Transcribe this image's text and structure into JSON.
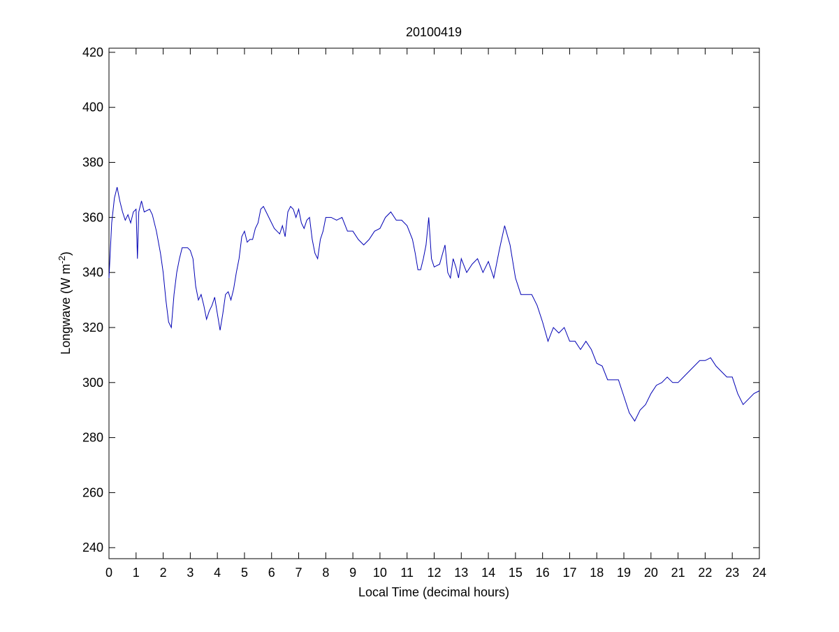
{
  "chart_data": {
    "type": "line",
    "title": "20100419",
    "xlabel": "Local Time (decimal hours)",
    "ylabel": [
      "Longwave (W m",
      "-2",
      ")"
    ],
    "xlim": [
      0,
      24
    ],
    "xticks": [
      0,
      1,
      2,
      3,
      4,
      5,
      6,
      7,
      8,
      9,
      10,
      11,
      12,
      13,
      14,
      15,
      16,
      17,
      18,
      19,
      20,
      21,
      22,
      23,
      24
    ],
    "ylim": [
      236,
      421.5
    ],
    "yticks": [
      240,
      260,
      280,
      300,
      320,
      340,
      360,
      380,
      400,
      420
    ],
    "series": [
      {
        "color": "#0000b4",
        "x": [
          0,
          0.1,
          0.2,
          0.3,
          0.4,
          0.5,
          0.6,
          0.7,
          0.8,
          0.9,
          1.0,
          1.05,
          1.1,
          1.2,
          1.3,
          1.5,
          1.6,
          1.75,
          1.9,
          2.0,
          2.1,
          2.2,
          2.3,
          2.4,
          2.5,
          2.6,
          2.7,
          2.8,
          2.9,
          3.0,
          3.1,
          3.2,
          3.3,
          3.4,
          3.5,
          3.6,
          3.7,
          3.8,
          3.9,
          4.0,
          4.1,
          4.2,
          4.3,
          4.4,
          4.5,
          4.6,
          4.7,
          4.8,
          4.9,
          5.0,
          5.1,
          5.2,
          5.3,
          5.4,
          5.5,
          5.6,
          5.7,
          5.8,
          5.9,
          6.0,
          6.1,
          6.2,
          6.3,
          6.4,
          6.5,
          6.6,
          6.7,
          6.8,
          6.9,
          7.0,
          7.1,
          7.2,
          7.3,
          7.4,
          7.5,
          7.6,
          7.7,
          7.8,
          7.9,
          8.0,
          8.2,
          8.4,
          8.6,
          8.8,
          9.0,
          9.2,
          9.4,
          9.6,
          9.8,
          10.0,
          10.2,
          10.4,
          10.6,
          10.8,
          11.0,
          11.2,
          11.3,
          11.4,
          11.5,
          11.6,
          11.7,
          11.8,
          11.9,
          12.0,
          12.2,
          12.4,
          12.5,
          12.6,
          12.7,
          12.8,
          12.9,
          13.0,
          13.2,
          13.4,
          13.6,
          13.8,
          14.0,
          14.2,
          14.4,
          14.6,
          14.8,
          15.0,
          15.2,
          15.4,
          15.6,
          15.8,
          16.0,
          16.2,
          16.4,
          16.6,
          16.8,
          17.0,
          17.2,
          17.4,
          17.6,
          17.8,
          18.0,
          18.2,
          18.4,
          18.6,
          18.8,
          19.0,
          19.2,
          19.4,
          19.6,
          19.8,
          20.0,
          20.2,
          20.4,
          20.6,
          20.8,
          21.0,
          21.2,
          21.4,
          21.6,
          21.8,
          22.0,
          22.2,
          22.4,
          22.6,
          22.8,
          23.0,
          23.2,
          23.4,
          23.6,
          23.8,
          24.0
        ],
        "values": [
          338,
          358,
          367,
          371,
          366,
          362,
          359,
          361,
          358,
          362,
          363,
          345,
          362,
          366,
          362,
          363,
          361,
          355,
          347,
          340,
          330,
          322,
          320,
          332,
          340,
          345,
          349,
          349,
          349,
          348,
          345,
          335,
          330,
          332,
          328,
          323,
          326,
          328,
          331,
          325,
          319,
          325,
          332,
          333,
          330,
          334,
          340,
          345,
          353,
          355,
          351,
          352,
          352,
          356,
          358,
          363,
          364,
          362,
          360,
          358,
          356,
          355,
          354,
          357,
          353,
          362,
          364,
          363,
          360,
          363,
          358,
          356,
          359,
          360,
          352,
          347,
          345,
          352,
          355,
          360,
          360,
          359,
          360,
          355,
          355,
          352,
          350,
          352,
          355,
          356,
          360,
          362,
          359,
          359,
          357,
          352,
          347,
          341,
          341,
          345,
          350,
          360,
          345,
          342,
          343,
          350,
          340,
          338,
          345,
          342,
          338,
          345,
          340,
          343,
          345,
          340,
          344,
          338,
          348,
          357,
          350,
          338,
          332,
          332,
          332,
          328,
          322,
          315,
          320,
          318,
          320,
          315,
          315,
          312,
          315,
          312,
          307,
          306,
          301,
          301,
          301,
          295,
          289,
          286,
          290,
          292,
          296,
          299,
          300,
          302,
          300,
          300,
          302,
          304,
          306,
          308,
          308,
          309,
          306,
          304,
          302,
          302,
          296,
          292,
          294,
          296,
          297
        ]
      }
    ]
  }
}
